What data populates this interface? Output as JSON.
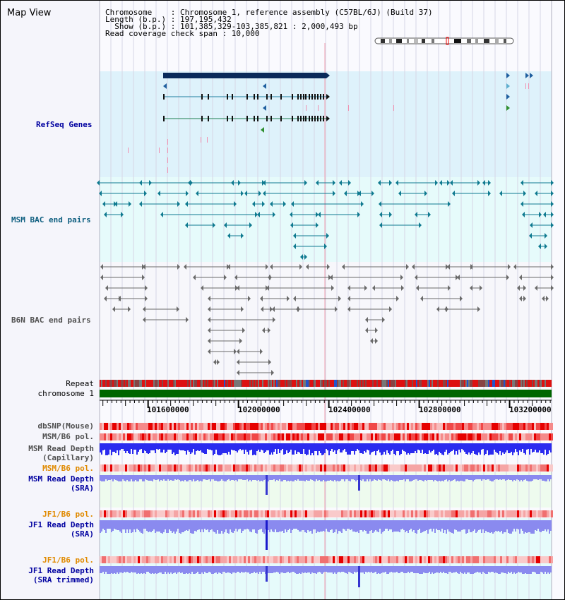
{
  "window": {
    "title": "Map View"
  },
  "header": {
    "lines": [
      "Chromosome    : Chromosome 1, reference assembly (C57BL/6J) (Build 37)",
      "Length (b.p.) : 197,195,432",
      "  Show (b.p.) : 101,385,329-103,385,821 : 2,000,493 bp",
      "Read coverage check span : 10,000"
    ]
  },
  "tracks": {
    "refseq": "RefSeq Genes",
    "msm_bac": "MSM BAC end pairs",
    "b6n_bac": "B6N BAC end pairs",
    "repeat": "Repeat",
    "chromosome": "chromosome 1",
    "dbsnp": "dbSNP(Mouse)",
    "msm_b6_pol_1": "MSM/B6 pol.",
    "msm_depth_cap_1": "MSM Read Depth",
    "msm_depth_cap_2": "(Capillary)",
    "msm_b6_pol_2": "MSM/B6 pol.",
    "msm_depth_sra_1": "MSM Read Depth",
    "msm_depth_sra_2": "(SRA)",
    "jf1_b6_pol_1": "JF1/B6 pol.",
    "jf1_depth_sra_1": "JF1 Read Depth",
    "jf1_depth_sra_2": "(SRA)",
    "jf1_b6_pol_2": "JF1/B6 pol.",
    "jf1_depth_trim_1": "JF1 Read Depth",
    "jf1_depth_trim_2": "(SRA trimmed)"
  },
  "axis": {
    "ticks": [
      "101600000",
      "102000000",
      "102400000",
      "102800000",
      "103200000"
    ],
    "tick_values": [
      101600000,
      102000000,
      102400000,
      102800000,
      103200000
    ],
    "view_start": 101385329,
    "view_end": 103385821
  },
  "colors": {
    "refseq_bg": "#def2fb",
    "msm_bg": "#e6fbfb",
    "b6n_bg": "#f7f7fb",
    "gene_dark": "#0a2a5a",
    "msm_mark": "#0f7a90",
    "b6n_mark": "#6a6a6a",
    "chrom_green": "#006600",
    "depth_blue": "#2b2bef",
    "depth_light": "#8a8aef"
  }
}
